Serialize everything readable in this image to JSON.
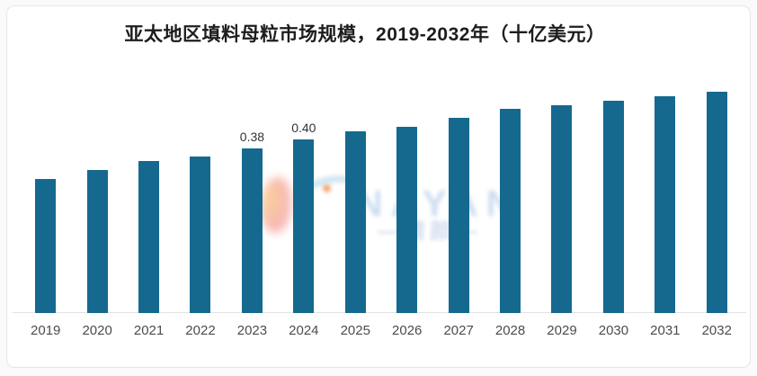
{
  "page": {
    "background_color": "#fafafa",
    "card_background": "#ffffff",
    "card_border_color": "#e6e6e6"
  },
  "chart_data": {
    "type": "bar",
    "title": "亚太地区填料母粒市场规模，2019-2032年（十亿美元）",
    "xlabel": "",
    "ylabel": "",
    "categories": [
      "2019",
      "2020",
      "2021",
      "2022",
      "2023",
      "2024",
      "2025",
      "2026",
      "2027",
      "2028",
      "2029",
      "2030",
      "2031",
      "2032"
    ],
    "values": [
      0.31,
      0.33,
      0.35,
      0.36,
      0.38,
      0.4,
      0.42,
      0.43,
      0.45,
      0.47,
      0.48,
      0.49,
      0.5,
      0.51
    ],
    "data_labels": [
      {
        "category": "2023",
        "text": "0.38"
      },
      {
        "category": "2024",
        "text": "0.40"
      }
    ],
    "ylim": [
      0,
      0.55
    ],
    "grid": false,
    "legend": false,
    "y_axis_visible": false,
    "bar_color": "#15698f",
    "axis_line_color": "#e2e2e2",
    "title_color": "#1d1d1d",
    "tick_label_color": "#4c4c4c",
    "data_label_color": "#333333"
  },
  "watermark": {
    "text": "NAYAN",
    "subtext": "—精颜—"
  }
}
